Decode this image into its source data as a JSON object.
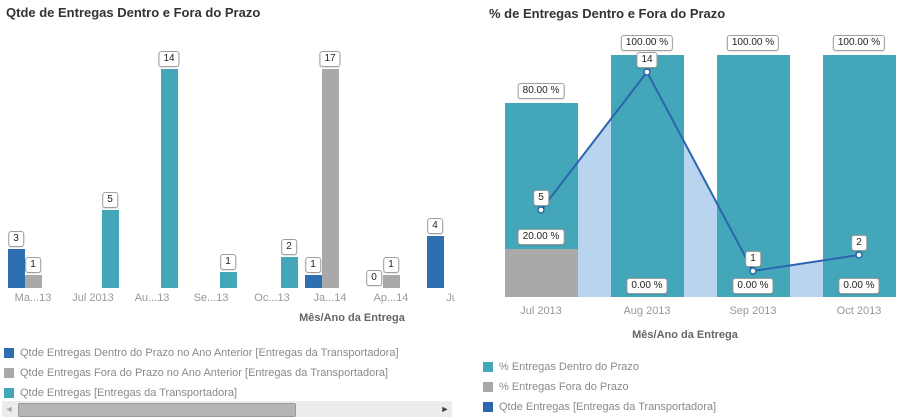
{
  "chart_data": [
    {
      "type": "bar",
      "title": "Qtde de Entregas Dentro e Fora do Prazo",
      "xlabel": "Mês/Ano da Entrega",
      "categories": [
        "Ma...13",
        "Jul 2013",
        "Au...13",
        "Se...13",
        "Oc...13",
        "Ja...14",
        "Ap...14",
        "Ju"
      ],
      "series": [
        {
          "name": "Qtde Entregas Dentro do Prazo no Ano Anterior [Entregas da Transportadora]",
          "color": "#2e6fb2",
          "values": [
            3,
            null,
            null,
            null,
            null,
            1,
            0,
            4
          ]
        },
        {
          "name": "Qtde Entregas Fora do Prazo no Ano Anterior [Entregas da Transportadora]",
          "color": "#a9a9a9",
          "values": [
            1,
            null,
            null,
            null,
            null,
            17,
            1,
            null
          ]
        },
        {
          "name": "Qtde Entregas [Entregas da Transportadora]",
          "color": "#44a7b9",
          "values": [
            null,
            5,
            14,
            1,
            2,
            null,
            null,
            null
          ]
        }
      ],
      "legend_position": "bottom-left",
      "grid": false,
      "value_labels_boxed": true
    },
    {
      "type": "stacked-bar-line",
      "title": "% de Entregas Dentro e Fora do Prazo",
      "xlabel": "Mês/Ano da Entrega",
      "categories": [
        "Jul 2013",
        "Aug 2013",
        "Sep 2013",
        "Oct 2013"
      ],
      "series": [
        {
          "name": "% Entregas Dentro do Prazo",
          "type": "bar",
          "color": "#44a7b9",
          "values": [
            80,
            100,
            100,
            100
          ],
          "labels": [
            "80.00 %",
            "100.00 %",
            "100.00 %",
            "100.00 %"
          ]
        },
        {
          "name": "% Entregas Fora do Prazo",
          "type": "bar",
          "color": "#a9a9a9",
          "values": [
            20,
            0,
            0,
            0
          ],
          "labels": [
            "20.00 %",
            "0.00 %",
            "0.00 %",
            "0.00 %"
          ]
        },
        {
          "name": "Qtde Entregas [Entregas da Transportadora]",
          "type": "line",
          "color": "#2d64ae",
          "area_color": "#b8d4ee",
          "values": [
            5,
            14,
            1,
            2
          ]
        }
      ],
      "ylim_percent": [
        0,
        100
      ],
      "legend_position": "bottom-left",
      "grid": false
    }
  ],
  "scrollbar": {
    "left_arrow": "◄",
    "right_arrow": "►"
  }
}
